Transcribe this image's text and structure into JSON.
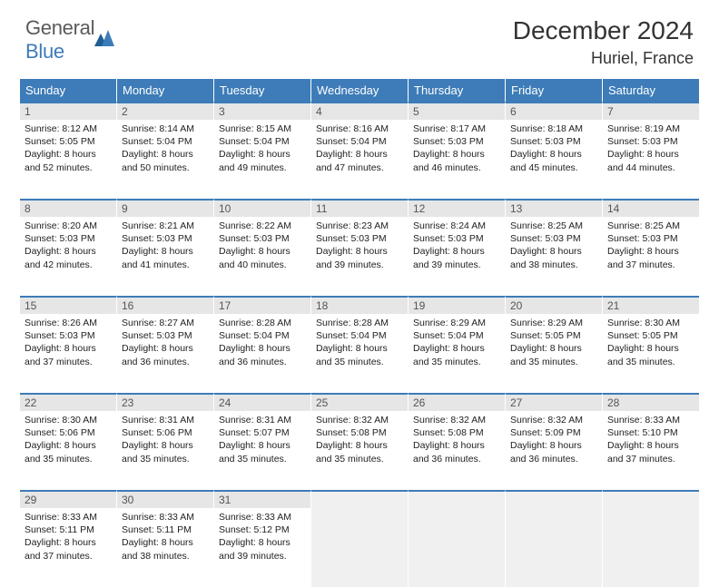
{
  "logo": {
    "part1": "General",
    "part2": "Blue"
  },
  "title": "December 2024",
  "location": "Huriel, France",
  "colors": {
    "header_bg": "#3d7cb8",
    "daynum_bg": "#e6e6e6",
    "border_accent": "#3d7cb8",
    "text": "#333333",
    "logo_gray": "#5a5a5a",
    "logo_blue": "#3d7cb8"
  },
  "day_labels": [
    "Sunday",
    "Monday",
    "Tuesday",
    "Wednesday",
    "Thursday",
    "Friday",
    "Saturday"
  ],
  "weeks": [
    [
      {
        "n": "1",
        "sr": "8:12 AM",
        "ss": "5:05 PM",
        "dl": "8 hours and 52 minutes."
      },
      {
        "n": "2",
        "sr": "8:14 AM",
        "ss": "5:04 PM",
        "dl": "8 hours and 50 minutes."
      },
      {
        "n": "3",
        "sr": "8:15 AM",
        "ss": "5:04 PM",
        "dl": "8 hours and 49 minutes."
      },
      {
        "n": "4",
        "sr": "8:16 AM",
        "ss": "5:04 PM",
        "dl": "8 hours and 47 minutes."
      },
      {
        "n": "5",
        "sr": "8:17 AM",
        "ss": "5:03 PM",
        "dl": "8 hours and 46 minutes."
      },
      {
        "n": "6",
        "sr": "8:18 AM",
        "ss": "5:03 PM",
        "dl": "8 hours and 45 minutes."
      },
      {
        "n": "7",
        "sr": "8:19 AM",
        "ss": "5:03 PM",
        "dl": "8 hours and 44 minutes."
      }
    ],
    [
      {
        "n": "8",
        "sr": "8:20 AM",
        "ss": "5:03 PM",
        "dl": "8 hours and 42 minutes."
      },
      {
        "n": "9",
        "sr": "8:21 AM",
        "ss": "5:03 PM",
        "dl": "8 hours and 41 minutes."
      },
      {
        "n": "10",
        "sr": "8:22 AM",
        "ss": "5:03 PM",
        "dl": "8 hours and 40 minutes."
      },
      {
        "n": "11",
        "sr": "8:23 AM",
        "ss": "5:03 PM",
        "dl": "8 hours and 39 minutes."
      },
      {
        "n": "12",
        "sr": "8:24 AM",
        "ss": "5:03 PM",
        "dl": "8 hours and 39 minutes."
      },
      {
        "n": "13",
        "sr": "8:25 AM",
        "ss": "5:03 PM",
        "dl": "8 hours and 38 minutes."
      },
      {
        "n": "14",
        "sr": "8:25 AM",
        "ss": "5:03 PM",
        "dl": "8 hours and 37 minutes."
      }
    ],
    [
      {
        "n": "15",
        "sr": "8:26 AM",
        "ss": "5:03 PM",
        "dl": "8 hours and 37 minutes."
      },
      {
        "n": "16",
        "sr": "8:27 AM",
        "ss": "5:03 PM",
        "dl": "8 hours and 36 minutes."
      },
      {
        "n": "17",
        "sr": "8:28 AM",
        "ss": "5:04 PM",
        "dl": "8 hours and 36 minutes."
      },
      {
        "n": "18",
        "sr": "8:28 AM",
        "ss": "5:04 PM",
        "dl": "8 hours and 35 minutes."
      },
      {
        "n": "19",
        "sr": "8:29 AM",
        "ss": "5:04 PM",
        "dl": "8 hours and 35 minutes."
      },
      {
        "n": "20",
        "sr": "8:29 AM",
        "ss": "5:05 PM",
        "dl": "8 hours and 35 minutes."
      },
      {
        "n": "21",
        "sr": "8:30 AM",
        "ss": "5:05 PM",
        "dl": "8 hours and 35 minutes."
      }
    ],
    [
      {
        "n": "22",
        "sr": "8:30 AM",
        "ss": "5:06 PM",
        "dl": "8 hours and 35 minutes."
      },
      {
        "n": "23",
        "sr": "8:31 AM",
        "ss": "5:06 PM",
        "dl": "8 hours and 35 minutes."
      },
      {
        "n": "24",
        "sr": "8:31 AM",
        "ss": "5:07 PM",
        "dl": "8 hours and 35 minutes."
      },
      {
        "n": "25",
        "sr": "8:32 AM",
        "ss": "5:08 PM",
        "dl": "8 hours and 35 minutes."
      },
      {
        "n": "26",
        "sr": "8:32 AM",
        "ss": "5:08 PM",
        "dl": "8 hours and 36 minutes."
      },
      {
        "n": "27",
        "sr": "8:32 AM",
        "ss": "5:09 PM",
        "dl": "8 hours and 36 minutes."
      },
      {
        "n": "28",
        "sr": "8:33 AM",
        "ss": "5:10 PM",
        "dl": "8 hours and 37 minutes."
      }
    ],
    [
      {
        "n": "29",
        "sr": "8:33 AM",
        "ss": "5:11 PM",
        "dl": "8 hours and 37 minutes."
      },
      {
        "n": "30",
        "sr": "8:33 AM",
        "ss": "5:11 PM",
        "dl": "8 hours and 38 minutes."
      },
      {
        "n": "31",
        "sr": "8:33 AM",
        "ss": "5:12 PM",
        "dl": "8 hours and 39 minutes."
      },
      {
        "n": "",
        "sr": "",
        "ss": "",
        "dl": ""
      },
      {
        "n": "",
        "sr": "",
        "ss": "",
        "dl": ""
      },
      {
        "n": "",
        "sr": "",
        "ss": "",
        "dl": ""
      },
      {
        "n": "",
        "sr": "",
        "ss": "",
        "dl": ""
      }
    ]
  ],
  "labels": {
    "sunrise": "Sunrise: ",
    "sunset": "Sunset: ",
    "daylight": "Daylight: "
  }
}
